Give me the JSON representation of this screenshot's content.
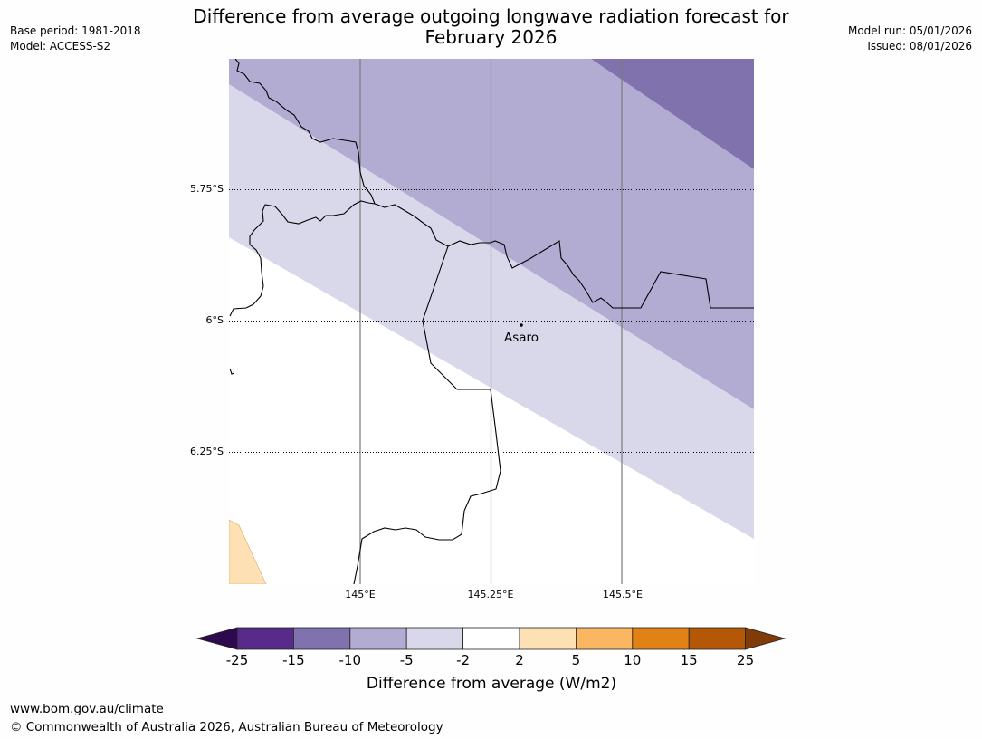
{
  "title": {
    "line1": "Difference from average outgoing longwave radiation forecast for",
    "line2": "February 2026"
  },
  "meta": {
    "base_period": "Base period: 1981-2018",
    "model": "Model: ACCESS-S2",
    "model_run": "Model run: 05/01/2026",
    "issued": "Issued: 08/01/2026"
  },
  "map": {
    "lat_labels": [
      "5.75°S",
      "6°S",
      "6.25°S"
    ],
    "lon_labels": [
      "145°E",
      "145.25°E",
      "145.5°E"
    ],
    "place": "Asaro"
  },
  "colorbar": {
    "ticks": [
      "-25",
      "-15",
      "-10",
      "-5",
      "-2",
      "2",
      "5",
      "10",
      "15",
      "25"
    ],
    "colors": {
      "below_min": "#2d0a4e",
      "bins": [
        "#582a89",
        "#8072ad",
        "#b2abd2",
        "#d8d8ea",
        "#ffffff",
        "#fee0b5",
        "#fbb662",
        "#e08214",
        "#b45808"
      ],
      "above_max": "#7f3b08"
    },
    "label": "Difference from average (W/m2)"
  },
  "footer": {
    "url": "www.bom.gov.au/climate",
    "copyright": "© Commonwealth of Australia 2026, Australian Bureau of Meteorology"
  }
}
